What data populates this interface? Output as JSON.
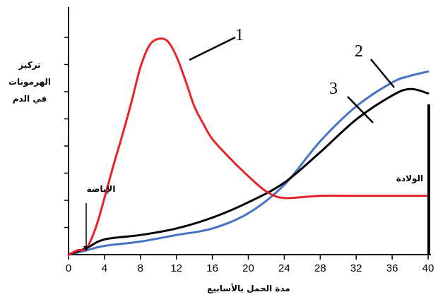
{
  "chart_data": {
    "type": "line",
    "xlabel": "مدة الحمل بالأسابيع",
    "ylabel": [
      "تركيز",
      "الهرمونات",
      "في الدم"
    ],
    "x_ticks": [
      0,
      4,
      8,
      12,
      16,
      20,
      24,
      28,
      32,
      36,
      40
    ],
    "xlim": [
      0,
      40
    ],
    "ylim": [
      0,
      100
    ],
    "grid": false,
    "annotations": {
      "ovulation": "الإباضة",
      "birth": "الولادة"
    },
    "series": [
      {
        "name": "1",
        "color": "#e8232a",
        "x": [
          0,
          1,
          2,
          3,
          4,
          5,
          6,
          7,
          8,
          9,
          10,
          11,
          12,
          13,
          14,
          15,
          16,
          18,
          20,
          22,
          24,
          28,
          32,
          36,
          40
        ],
        "y": [
          0,
          2,
          3,
          12,
          26,
          41,
          55,
          70,
          86,
          96,
          99,
          98,
          91,
          80,
          68,
          60,
          53,
          44,
          36,
          29,
          26,
          27,
          27,
          27,
          27
        ]
      },
      {
        "name": "2",
        "color": "#4472c4",
        "x": [
          0,
          2,
          4,
          8,
          12,
          16,
          20,
          24,
          28,
          32,
          36,
          38,
          40
        ],
        "y": [
          0,
          2,
          4,
          6,
          9,
          12,
          19,
          32,
          52,
          68,
          79,
          82,
          84
        ]
      },
      {
        "name": "3",
        "color": "#000000",
        "x": [
          0,
          2,
          4,
          8,
          12,
          16,
          20,
          24,
          28,
          32,
          36,
          38,
          40
        ],
        "y": [
          0,
          3,
          7,
          9,
          12,
          17,
          24,
          33,
          47,
          62,
          73,
          76,
          74
        ]
      }
    ]
  }
}
